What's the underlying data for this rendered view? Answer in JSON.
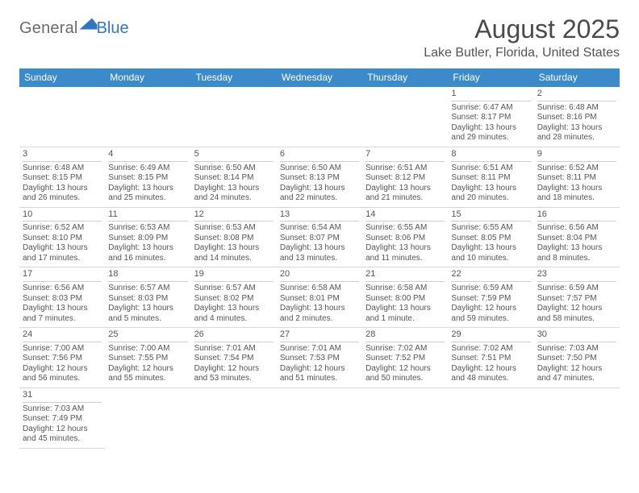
{
  "logo": {
    "text1": "General",
    "text2": "Blue"
  },
  "title": "August 2025",
  "location": "Lake Butler, Florida, United States",
  "colors": {
    "header_bg": "#3b8bca",
    "header_text": "#ffffff",
    "rule": "#3b8bca",
    "text": "#555555",
    "logo_blue": "#2f78bf",
    "logo_gray": "#6a6a6a",
    "page_bg": "#ffffff"
  },
  "typography": {
    "title_fontsize": 32,
    "location_fontsize": 16,
    "dayheader_fontsize": 12,
    "cell_fontsize": 10,
    "logo_fontsize": 20
  },
  "day_labels": [
    "Sunday",
    "Monday",
    "Tuesday",
    "Wednesday",
    "Thursday",
    "Friday",
    "Saturday"
  ],
  "weeks": [
    [
      null,
      null,
      null,
      null,
      null,
      {
        "n": "1",
        "sr": "Sunrise: 6:47 AM",
        "ss": "Sunset: 8:17 PM",
        "d1": "Daylight: 13 hours",
        "d2": "and 29 minutes."
      },
      {
        "n": "2",
        "sr": "Sunrise: 6:48 AM",
        "ss": "Sunset: 8:16 PM",
        "d1": "Daylight: 13 hours",
        "d2": "and 28 minutes."
      }
    ],
    [
      {
        "n": "3",
        "sr": "Sunrise: 6:48 AM",
        "ss": "Sunset: 8:15 PM",
        "d1": "Daylight: 13 hours",
        "d2": "and 26 minutes."
      },
      {
        "n": "4",
        "sr": "Sunrise: 6:49 AM",
        "ss": "Sunset: 8:15 PM",
        "d1": "Daylight: 13 hours",
        "d2": "and 25 minutes."
      },
      {
        "n": "5",
        "sr": "Sunrise: 6:50 AM",
        "ss": "Sunset: 8:14 PM",
        "d1": "Daylight: 13 hours",
        "d2": "and 24 minutes."
      },
      {
        "n": "6",
        "sr": "Sunrise: 6:50 AM",
        "ss": "Sunset: 8:13 PM",
        "d1": "Daylight: 13 hours",
        "d2": "and 22 minutes."
      },
      {
        "n": "7",
        "sr": "Sunrise: 6:51 AM",
        "ss": "Sunset: 8:12 PM",
        "d1": "Daylight: 13 hours",
        "d2": "and 21 minutes."
      },
      {
        "n": "8",
        "sr": "Sunrise: 6:51 AM",
        "ss": "Sunset: 8:11 PM",
        "d1": "Daylight: 13 hours",
        "d2": "and 20 minutes."
      },
      {
        "n": "9",
        "sr": "Sunrise: 6:52 AM",
        "ss": "Sunset: 8:11 PM",
        "d1": "Daylight: 13 hours",
        "d2": "and 18 minutes."
      }
    ],
    [
      {
        "n": "10",
        "sr": "Sunrise: 6:52 AM",
        "ss": "Sunset: 8:10 PM",
        "d1": "Daylight: 13 hours",
        "d2": "and 17 minutes."
      },
      {
        "n": "11",
        "sr": "Sunrise: 6:53 AM",
        "ss": "Sunset: 8:09 PM",
        "d1": "Daylight: 13 hours",
        "d2": "and 16 minutes."
      },
      {
        "n": "12",
        "sr": "Sunrise: 6:53 AM",
        "ss": "Sunset: 8:08 PM",
        "d1": "Daylight: 13 hours",
        "d2": "and 14 minutes."
      },
      {
        "n": "13",
        "sr": "Sunrise: 6:54 AM",
        "ss": "Sunset: 8:07 PM",
        "d1": "Daylight: 13 hours",
        "d2": "and 13 minutes."
      },
      {
        "n": "14",
        "sr": "Sunrise: 6:55 AM",
        "ss": "Sunset: 8:06 PM",
        "d1": "Daylight: 13 hours",
        "d2": "and 11 minutes."
      },
      {
        "n": "15",
        "sr": "Sunrise: 6:55 AM",
        "ss": "Sunset: 8:05 PM",
        "d1": "Daylight: 13 hours",
        "d2": "and 10 minutes."
      },
      {
        "n": "16",
        "sr": "Sunrise: 6:56 AM",
        "ss": "Sunset: 8:04 PM",
        "d1": "Daylight: 13 hours",
        "d2": "and 8 minutes."
      }
    ],
    [
      {
        "n": "17",
        "sr": "Sunrise: 6:56 AM",
        "ss": "Sunset: 8:03 PM",
        "d1": "Daylight: 13 hours",
        "d2": "and 7 minutes."
      },
      {
        "n": "18",
        "sr": "Sunrise: 6:57 AM",
        "ss": "Sunset: 8:03 PM",
        "d1": "Daylight: 13 hours",
        "d2": "and 5 minutes."
      },
      {
        "n": "19",
        "sr": "Sunrise: 6:57 AM",
        "ss": "Sunset: 8:02 PM",
        "d1": "Daylight: 13 hours",
        "d2": "and 4 minutes."
      },
      {
        "n": "20",
        "sr": "Sunrise: 6:58 AM",
        "ss": "Sunset: 8:01 PM",
        "d1": "Daylight: 13 hours",
        "d2": "and 2 minutes."
      },
      {
        "n": "21",
        "sr": "Sunrise: 6:58 AM",
        "ss": "Sunset: 8:00 PM",
        "d1": "Daylight: 13 hours",
        "d2": "and 1 minute."
      },
      {
        "n": "22",
        "sr": "Sunrise: 6:59 AM",
        "ss": "Sunset: 7:59 PM",
        "d1": "Daylight: 12 hours",
        "d2": "and 59 minutes."
      },
      {
        "n": "23",
        "sr": "Sunrise: 6:59 AM",
        "ss": "Sunset: 7:57 PM",
        "d1": "Daylight: 12 hours",
        "d2": "and 58 minutes."
      }
    ],
    [
      {
        "n": "24",
        "sr": "Sunrise: 7:00 AM",
        "ss": "Sunset: 7:56 PM",
        "d1": "Daylight: 12 hours",
        "d2": "and 56 minutes."
      },
      {
        "n": "25",
        "sr": "Sunrise: 7:00 AM",
        "ss": "Sunset: 7:55 PM",
        "d1": "Daylight: 12 hours",
        "d2": "and 55 minutes."
      },
      {
        "n": "26",
        "sr": "Sunrise: 7:01 AM",
        "ss": "Sunset: 7:54 PM",
        "d1": "Daylight: 12 hours",
        "d2": "and 53 minutes."
      },
      {
        "n": "27",
        "sr": "Sunrise: 7:01 AM",
        "ss": "Sunset: 7:53 PM",
        "d1": "Daylight: 12 hours",
        "d2": "and 51 minutes."
      },
      {
        "n": "28",
        "sr": "Sunrise: 7:02 AM",
        "ss": "Sunset: 7:52 PM",
        "d1": "Daylight: 12 hours",
        "d2": "and 50 minutes."
      },
      {
        "n": "29",
        "sr": "Sunrise: 7:02 AM",
        "ss": "Sunset: 7:51 PM",
        "d1": "Daylight: 12 hours",
        "d2": "and 48 minutes."
      },
      {
        "n": "30",
        "sr": "Sunrise: 7:03 AM",
        "ss": "Sunset: 7:50 PM",
        "d1": "Daylight: 12 hours",
        "d2": "and 47 minutes."
      }
    ],
    [
      {
        "n": "31",
        "sr": "Sunrise: 7:03 AM",
        "ss": "Sunset: 7:49 PM",
        "d1": "Daylight: 12 hours",
        "d2": "and 45 minutes."
      },
      null,
      null,
      null,
      null,
      null,
      null
    ]
  ]
}
